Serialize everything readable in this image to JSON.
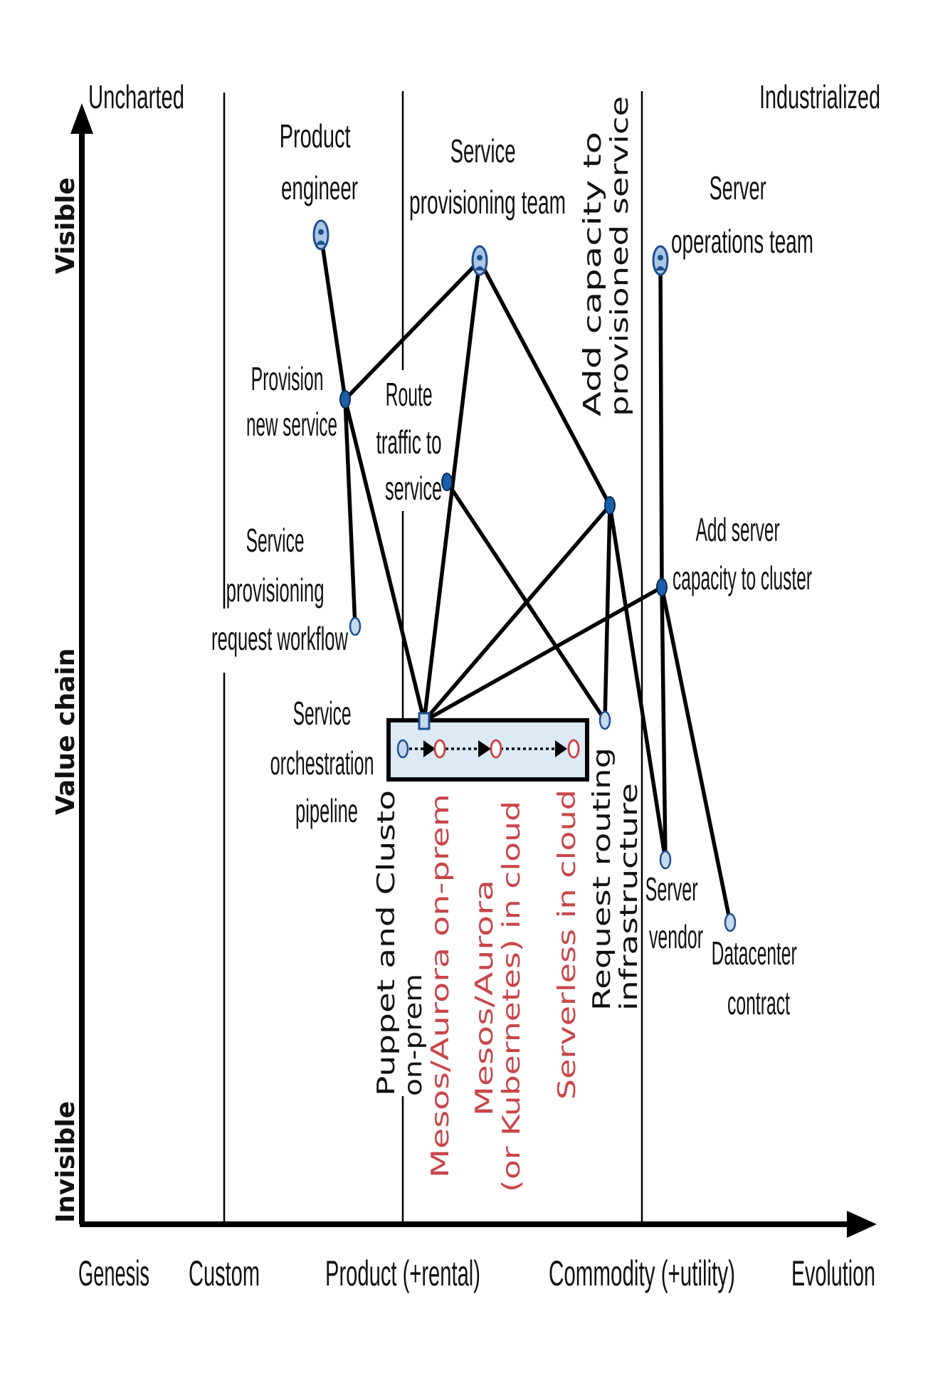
{
  "corner_labels": {
    "uncharted": "Uncharted",
    "industrialized": "Industrialized"
  },
  "y_axis": {
    "visible": "Visible",
    "value_chain": "Value chain",
    "invisible": "Invisible"
  },
  "x_axis": {
    "genesis": "Genesis",
    "custom": "Custom",
    "product": "Product (+rental)",
    "commodity": "Commodity (+utility)",
    "evolution": "Evolution"
  },
  "nodes": {
    "product_engineer": [
      "Product",
      "engineer"
    ],
    "service_provisioning_team": [
      "Service",
      "provisioning team"
    ],
    "server_operations_team": [
      "Server",
      "operations team"
    ],
    "provision_new_service": [
      "Provision",
      "new service"
    ],
    "route_traffic": [
      "Route",
      "traffic to",
      "service"
    ],
    "add_capacity": [
      "Add capacity to",
      "provisioned service"
    ],
    "add_server_capacity": [
      "Add server",
      "capacity to cluster"
    ],
    "workflow": [
      "Service",
      "provisioning",
      "request workflow"
    ],
    "pipeline": [
      "Service",
      "orchestration",
      "pipeline"
    ],
    "request_routing": [
      "Request routing",
      "infrastructure"
    ],
    "server_vendor": [
      "Server",
      "vendor"
    ],
    "datacenter_contract": [
      "Datacenter",
      "contract"
    ]
  },
  "evolution_stages": {
    "puppet": [
      "Puppet and Clusto",
      "on-prem"
    ],
    "mesos_onprem": [
      "Mesos/Aurora on-prem"
    ],
    "mesos_cloud": [
      "Mesos/Aurora",
      "(or Kubernetes) in cloud"
    ],
    "serverless": [
      "Serverless in cloud"
    ]
  },
  "colors": {
    "user_fill": "#a9c6e4",
    "user_stroke": "#1f4e8c",
    "dark_node": "#1a5fa8",
    "light_node": "#c5d9ee",
    "pipeline_box": "#dbeaf5",
    "future_stage": "#c8464a"
  }
}
